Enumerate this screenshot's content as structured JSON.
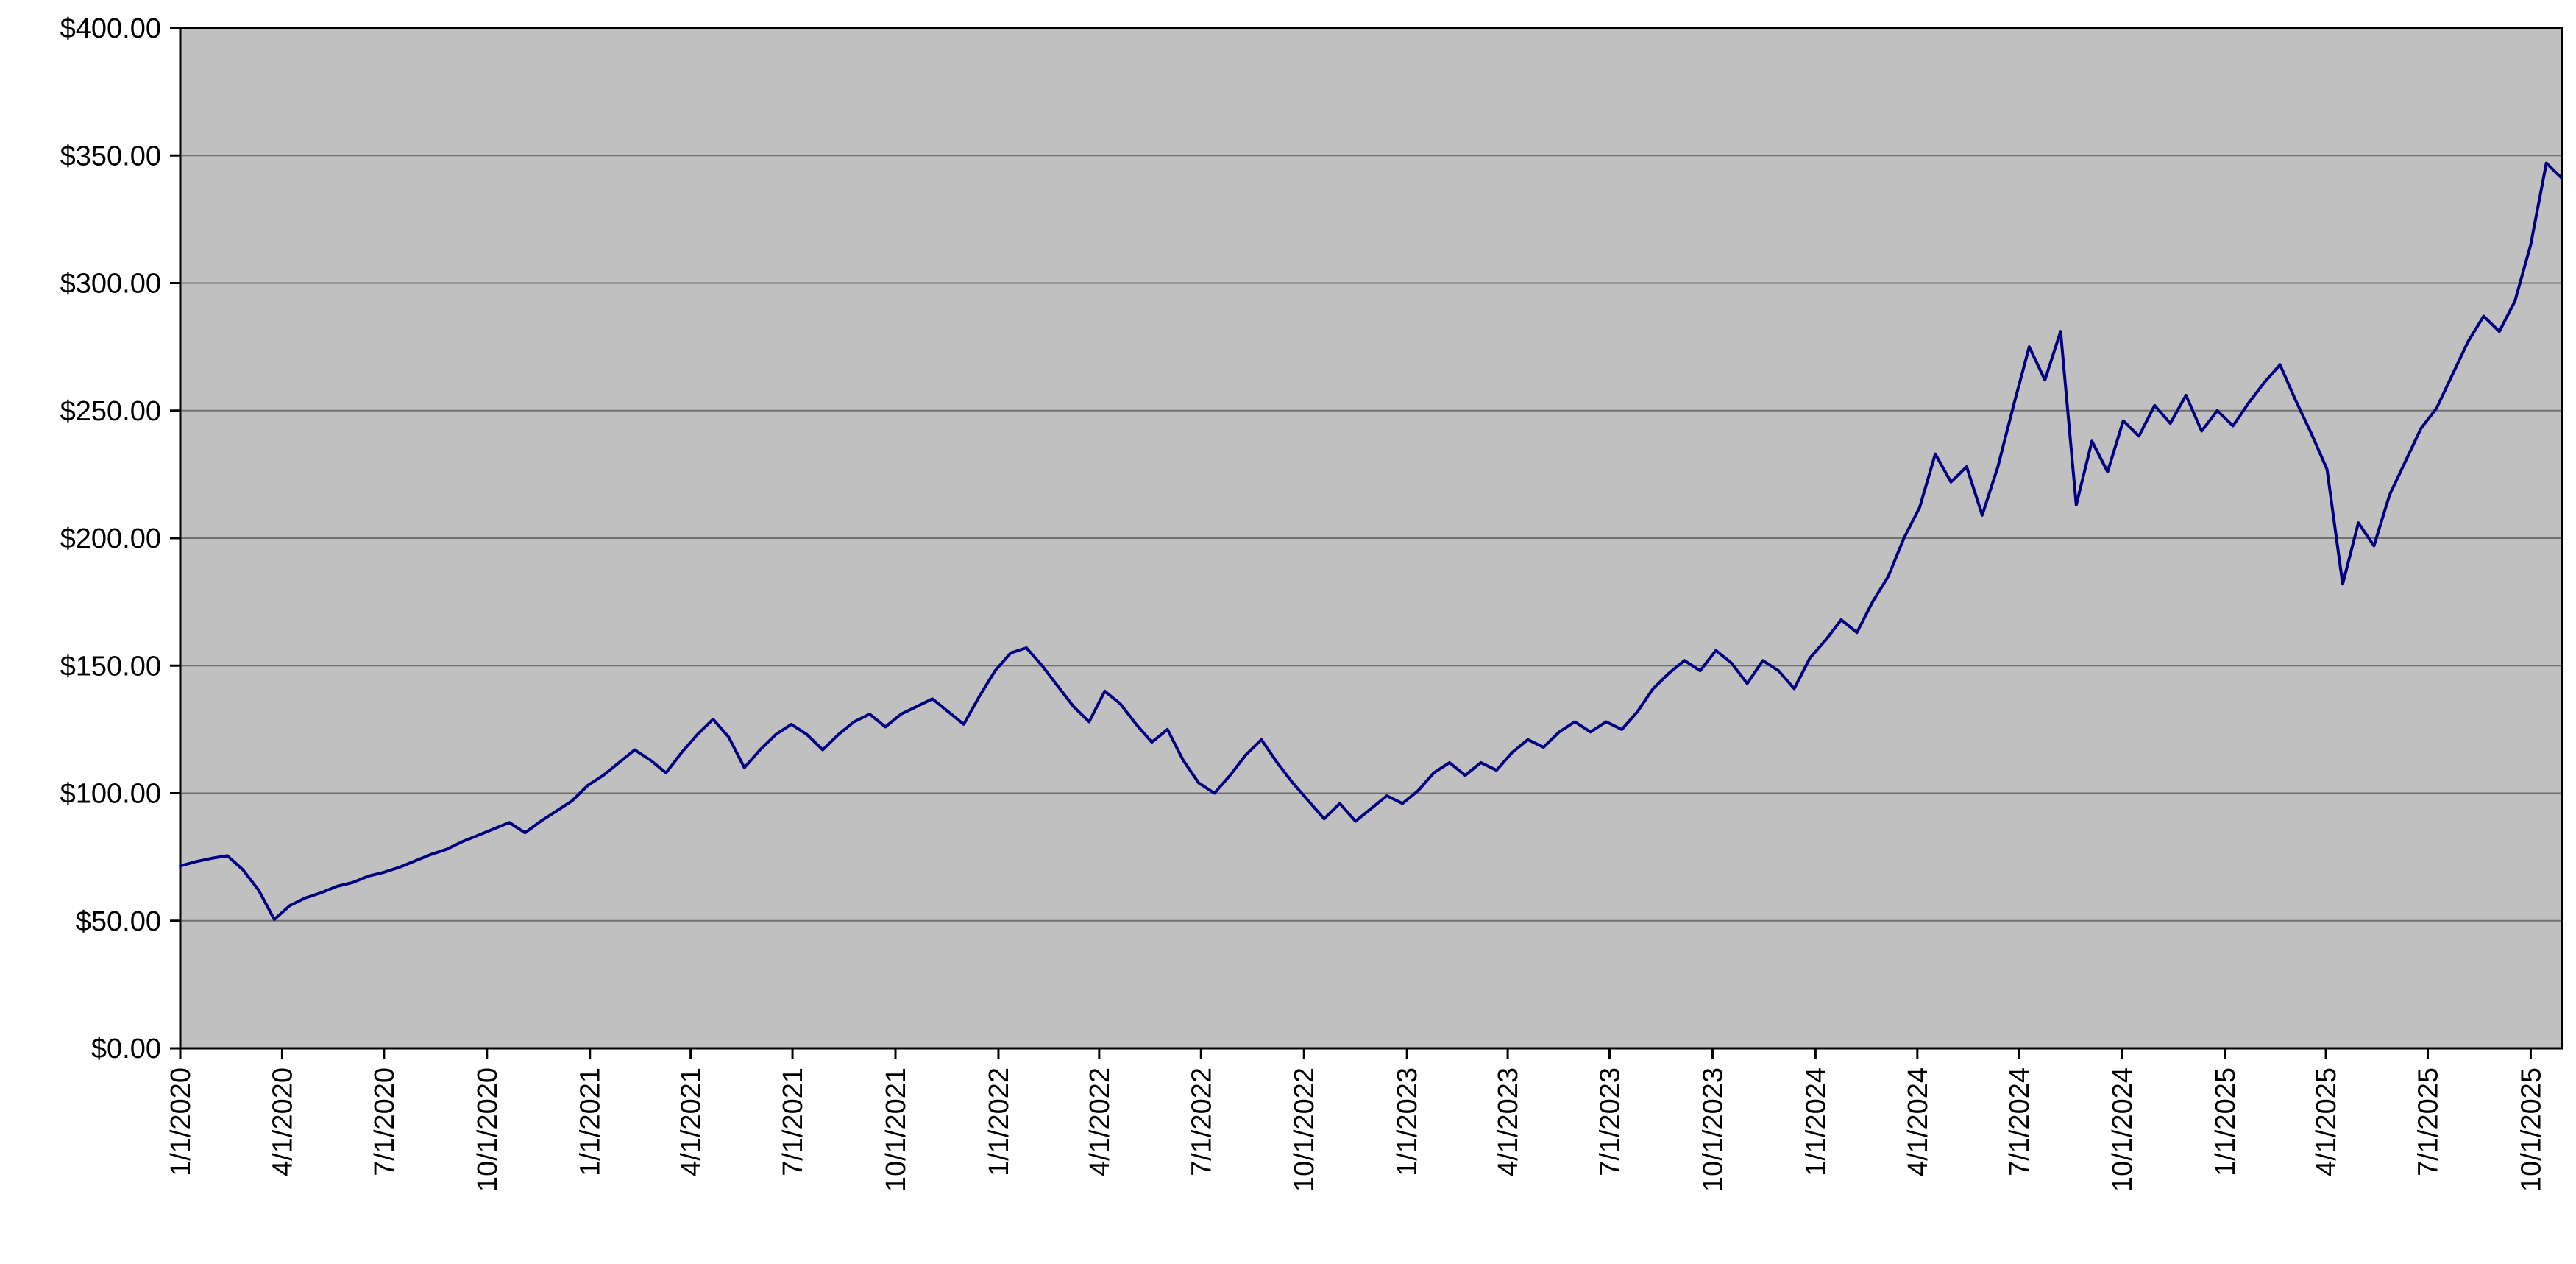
{
  "chart_data": {
    "type": "line",
    "title": "",
    "grid": true,
    "legend": false,
    "ylim": [
      0,
      400
    ],
    "y_tick_values": [
      0,
      50,
      100,
      150,
      200,
      250,
      300,
      350,
      400
    ],
    "y_tick_labels": [
      "$0.00",
      "$50.00",
      "$100.00",
      "$150.00",
      "$200.00",
      "$250.00",
      "$300.00",
      "$350.00",
      "$400.00"
    ],
    "x_tick_labels": [
      "1/1/2020",
      "4/1/2020",
      "7/1/2020",
      "10/1/2020",
      "1/1/2021",
      "4/1/2021",
      "7/1/2021",
      "10/1/2021",
      "1/1/2022",
      "4/1/2022",
      "7/1/2022",
      "10/1/2022",
      "1/1/2023",
      "4/1/2023",
      "7/1/2023",
      "10/1/2023",
      "1/1/2024",
      "4/1/2024",
      "7/1/2024",
      "10/1/2024",
      "1/1/2025",
      "4/1/2025",
      "7/1/2025",
      "10/1/2025"
    ],
    "x_start_date": "1/1/2020",
    "x_interval_days": 14,
    "values": [
      71.5,
      73.2,
      74.5,
      75.5,
      70.0,
      62.0,
      50.5,
      56.0,
      59.0,
      61.0,
      63.5,
      65.0,
      67.5,
      69.0,
      71.0,
      73.5,
      76.0,
      78.0,
      81.0,
      83.5,
      86.0,
      88.5,
      84.5,
      89.0,
      93.0,
      97.0,
      103.0,
      107.0,
      112.0,
      117.0,
      113.0,
      108.0,
      116.0,
      123.0,
      129.0,
      122.0,
      110.0,
      117.0,
      123.0,
      127.0,
      123.0,
      117.0,
      123.0,
      128.0,
      131.0,
      126.0,
      131.0,
      134.0,
      137.0,
      132.0,
      127.0,
      138.0,
      148.0,
      155.0,
      157.0,
      150.0,
      142.0,
      134.0,
      128.0,
      140.0,
      135.0,
      127.0,
      120.0,
      125.0,
      113.0,
      104.0,
      100.0,
      107.0,
      115.0,
      121.0,
      112.0,
      104.0,
      97.0,
      90.0,
      96.0,
      89.0,
      94.0,
      99.0,
      96.0,
      101.0,
      108.0,
      112.0,
      107.0,
      112.0,
      109.0,
      116.0,
      121.0,
      118.0,
      124.0,
      128.0,
      124.0,
      128.0,
      125.0,
      132.0,
      141.0,
      147.0,
      152.0,
      148.0,
      156.0,
      151.0,
      143.0,
      152.0,
      148.0,
      141.0,
      153.0,
      160.0,
      168.0,
      163.0,
      175.0,
      185.0,
      200.0,
      212.0,
      233.0,
      222.0,
      228.0,
      209.0,
      228.0,
      252.0,
      275.0,
      262.0,
      281.0,
      213.0,
      238.0,
      226.0,
      246.0,
      240.0,
      252.0,
      245.0,
      256.0,
      242.0,
      250.0,
      244.0,
      253.0,
      261.0,
      268.0,
      254.0,
      241.0,
      227.0,
      182.0,
      206.0,
      197.0,
      217.0,
      230.0,
      243.0,
      251.0,
      264.0,
      277.0,
      287.0,
      281.0,
      293.0,
      315.0,
      347.0,
      341.0
    ],
    "colors": {
      "line": "#000080",
      "plot_background": "#c0c0c0",
      "gridline": "#707070",
      "axis": "#000000",
      "label_text": "#000000",
      "page_background": "#ffffff"
    }
  }
}
